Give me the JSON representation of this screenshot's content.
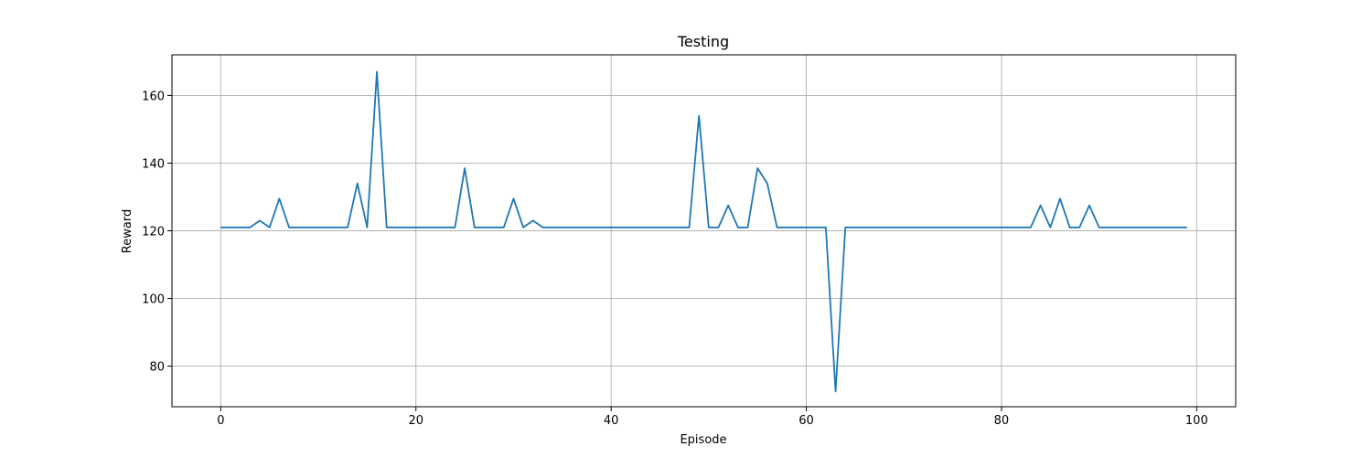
{
  "chart_data": {
    "type": "line",
    "title": "Testing",
    "xlabel": "Episode",
    "ylabel": "Reward",
    "xlim": [
      -5,
      104
    ],
    "ylim": [
      68,
      172
    ],
    "xticks": [
      0,
      20,
      40,
      60,
      80,
      100
    ],
    "yticks": [
      80,
      100,
      120,
      140,
      160
    ],
    "grid": true,
    "line_color": "#1f77b4",
    "series": [
      {
        "x": [
          0,
          1,
          2,
          3,
          4,
          5,
          6,
          7,
          8,
          9,
          10,
          11,
          12,
          13,
          14,
          15,
          16,
          17,
          18,
          19,
          20,
          21,
          22,
          23,
          24,
          25,
          26,
          27,
          28,
          29,
          30,
          31,
          32,
          33,
          34,
          35,
          36,
          37,
          38,
          39,
          40,
          41,
          42,
          43,
          44,
          45,
          46,
          47,
          48,
          49,
          50,
          51,
          52,
          53,
          54,
          55,
          56,
          57,
          58,
          59,
          60,
          61,
          62,
          63,
          64,
          65,
          66,
          67,
          68,
          69,
          70,
          71,
          72,
          73,
          74,
          75,
          76,
          77,
          78,
          79,
          80,
          81,
          82,
          83,
          84,
          85,
          86,
          87,
          88,
          89,
          90,
          91,
          92,
          93,
          94,
          95,
          96,
          97,
          98,
          99
        ],
        "values": [
          121,
          121,
          121,
          121,
          123,
          121,
          129.5,
          121,
          121,
          121,
          121,
          121,
          121,
          121,
          134,
          121,
          167,
          121,
          121,
          121,
          121,
          121,
          121,
          121,
          121,
          138.5,
          121,
          121,
          121,
          121,
          129.5,
          121,
          123,
          121,
          121,
          121,
          121,
          121,
          121,
          121,
          121,
          121,
          121,
          121,
          121,
          121,
          121,
          121,
          121,
          154,
          121,
          121,
          127.5,
          121,
          121,
          138.5,
          134,
          121,
          121,
          121,
          121,
          121,
          121,
          72.5,
          121,
          121,
          121,
          121,
          121,
          121,
          121,
          121,
          121,
          121,
          121,
          121,
          121,
          121,
          121,
          121,
          121,
          121,
          121,
          121,
          127.5,
          121,
          129.5,
          121,
          121,
          127.5,
          121,
          121,
          121,
          121,
          121,
          121,
          121,
          121,
          121,
          121
        ]
      }
    ]
  }
}
